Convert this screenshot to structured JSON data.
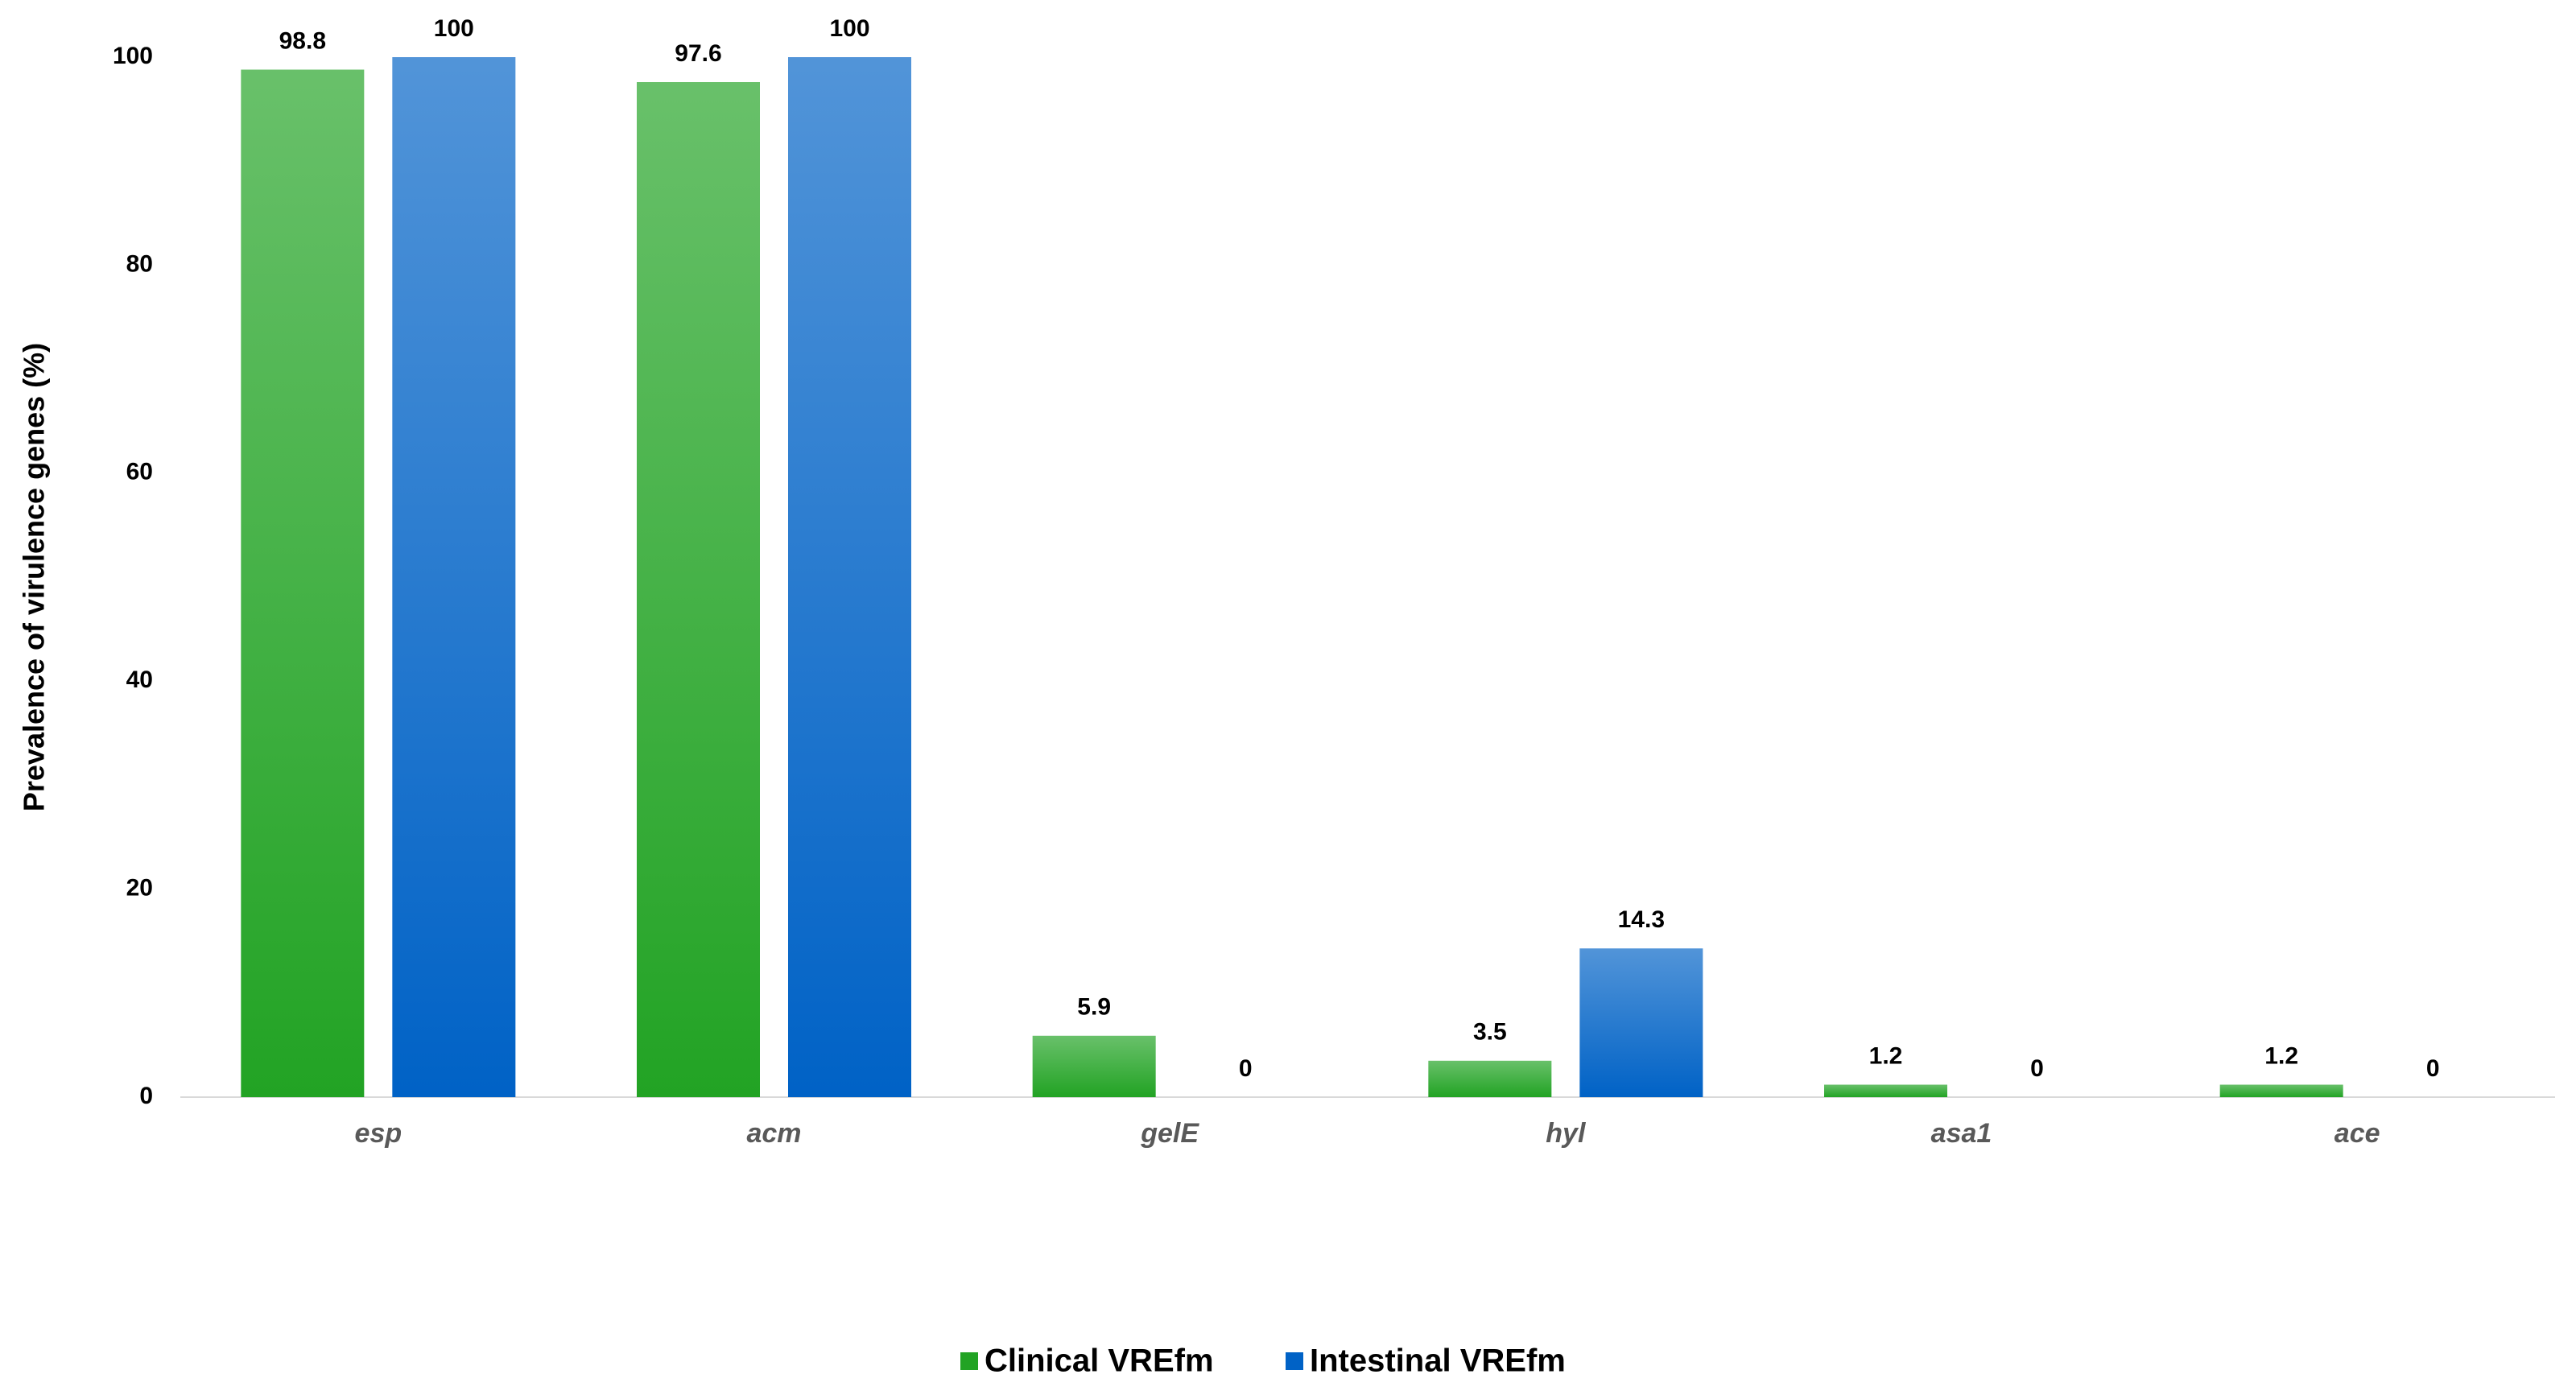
{
  "chart_data": {
    "type": "bar",
    "y_label": "Prevalence of virulence genes (%)",
    "categories": [
      "esp",
      "acm",
      "gelE",
      "hyl",
      "asa1",
      "ace"
    ],
    "series": [
      {
        "name": "Clinical VREfm",
        "color": "#22a324",
        "values": [
          98.8,
          97.6,
          5.9,
          3.5,
          1.2,
          1.2
        ]
      },
      {
        "name": "Intestinal VREfm",
        "color": "#0062c6",
        "values": [
          100,
          100,
          0,
          14.3,
          0,
          0
        ]
      }
    ],
    "ylim": [
      0,
      100
    ],
    "yticks": [
      0,
      20,
      40,
      60,
      80,
      100
    ],
    "grid": false,
    "legend": "bottom"
  }
}
